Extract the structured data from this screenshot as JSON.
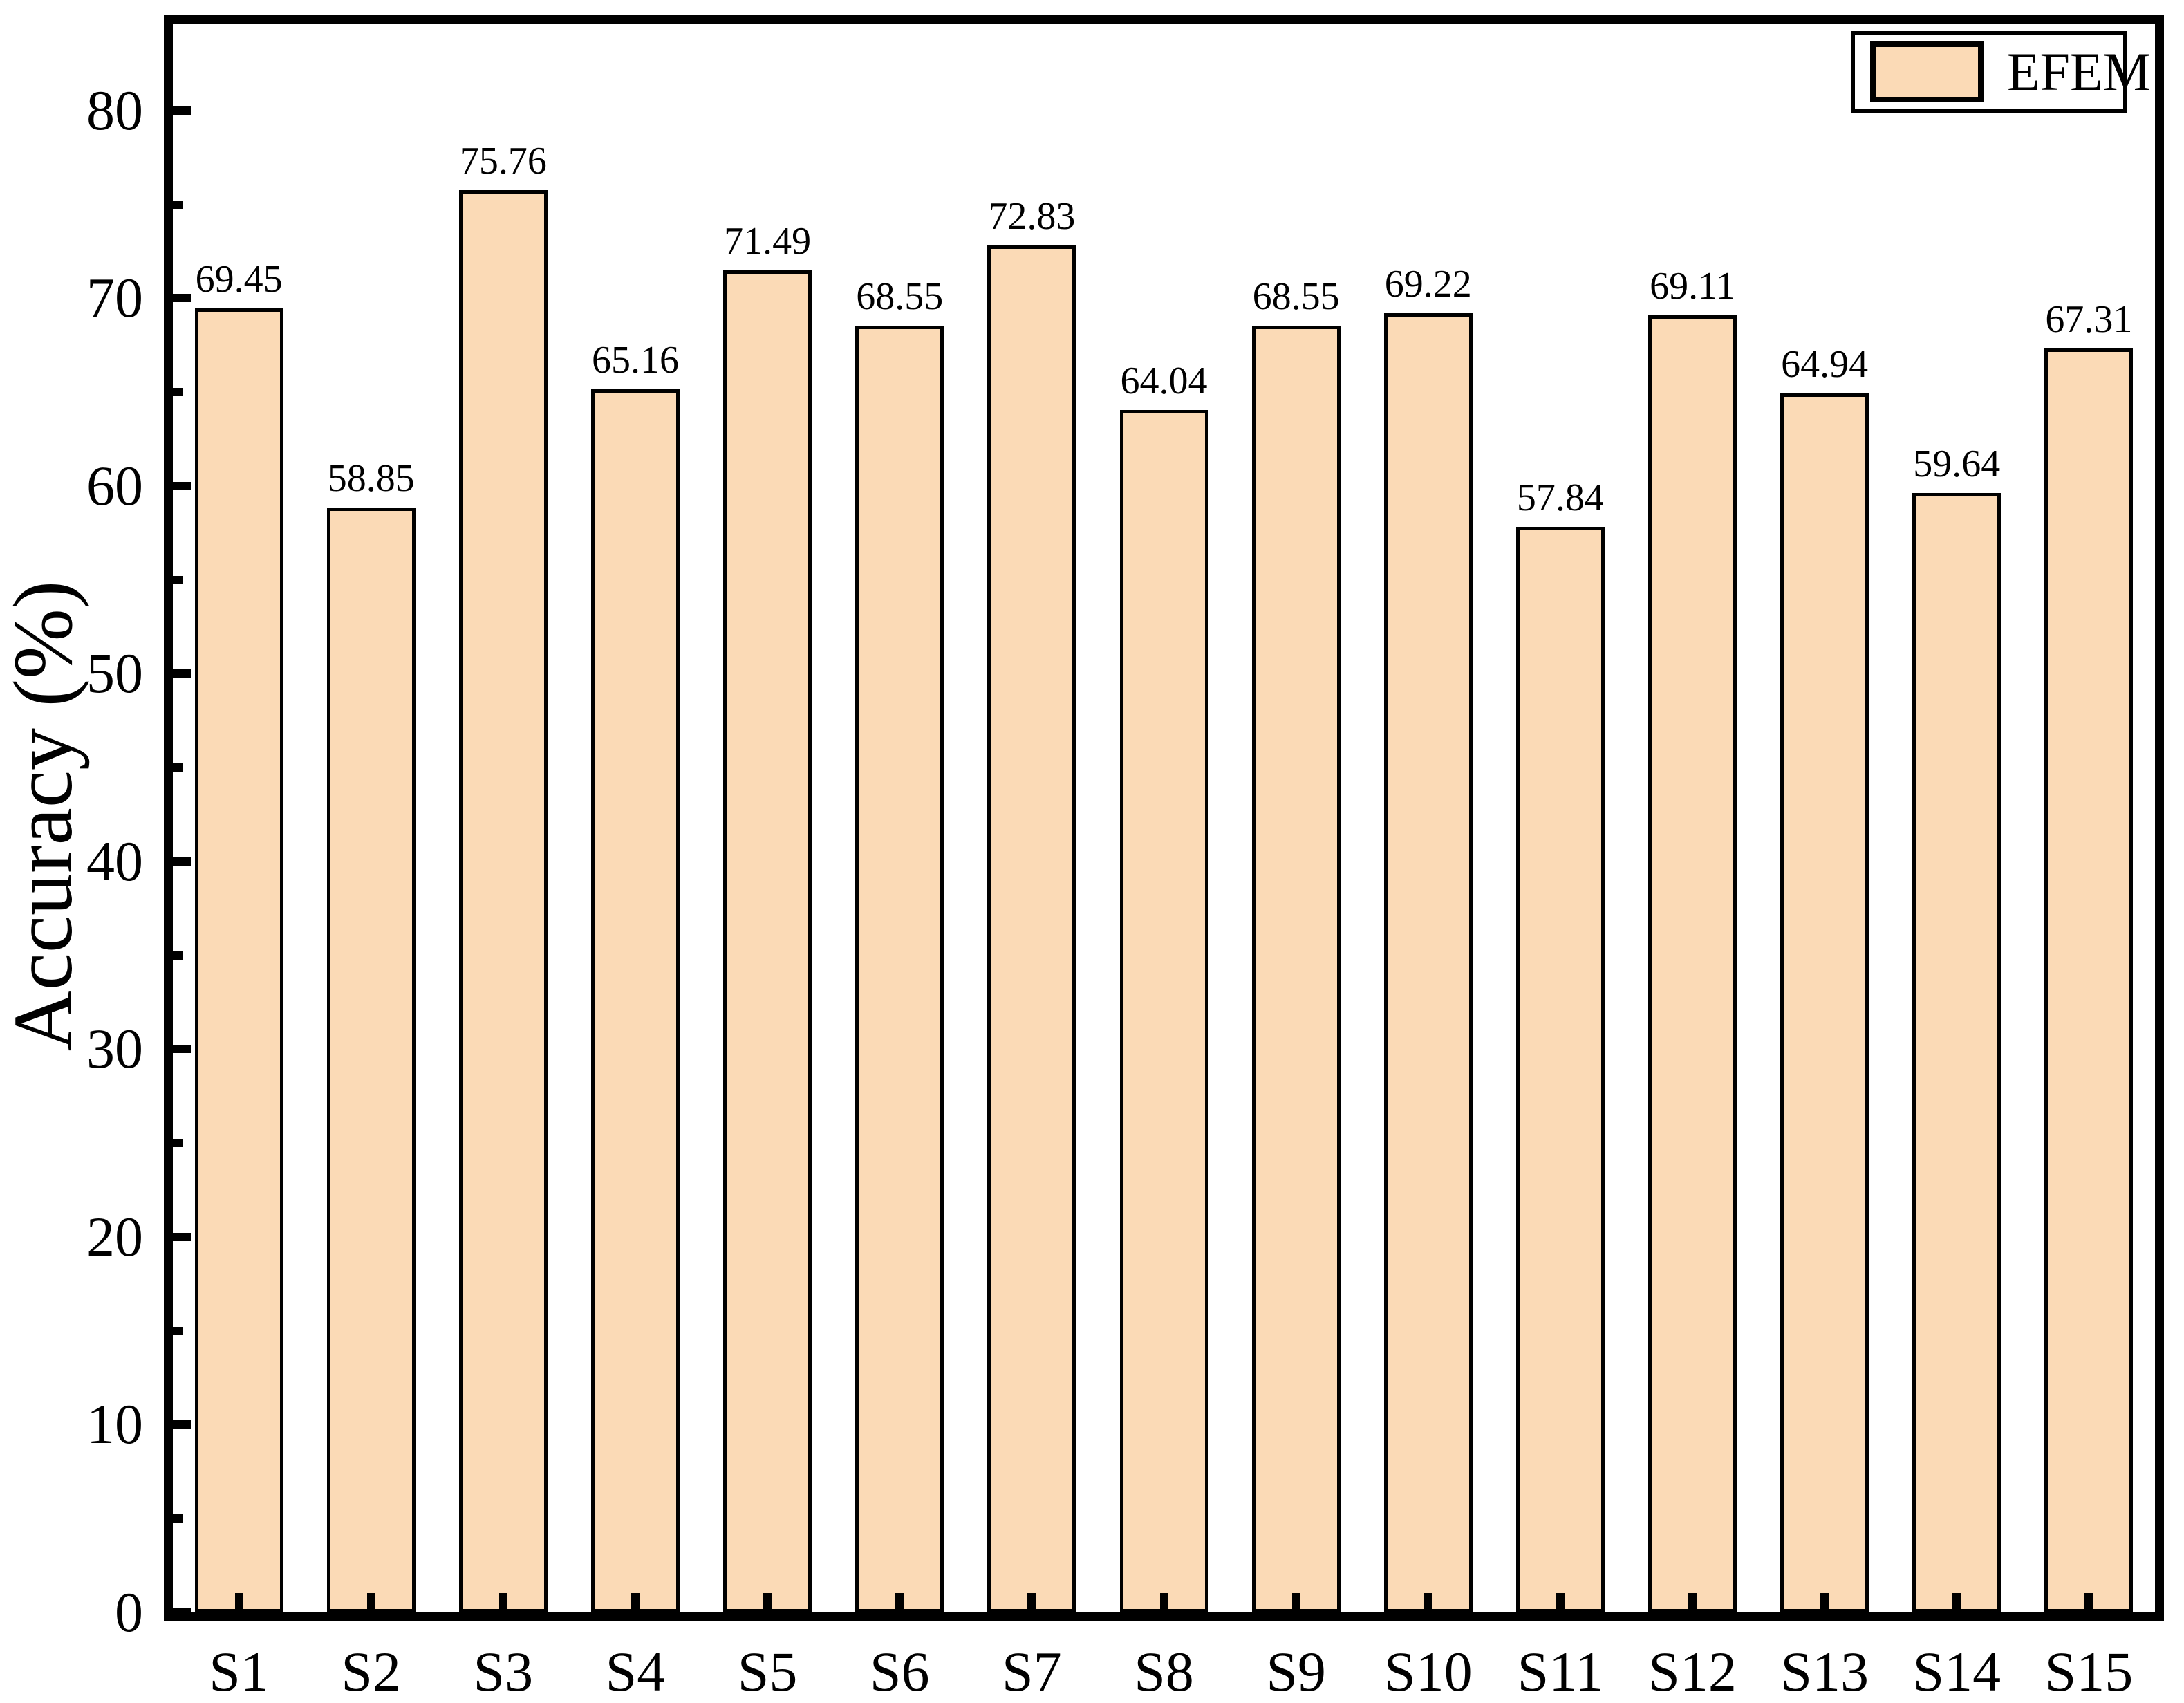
{
  "figure": {
    "background_color": "#ffffff",
    "axis_color": "#000000",
    "text_color": "#000000"
  },
  "chart_data": {
    "type": "bar",
    "title": "",
    "xlabel": "",
    "ylabel": "Accuracy (%)",
    "categories": [
      "S1",
      "S2",
      "S3",
      "S4",
      "S5",
      "S6",
      "S7",
      "S8",
      "S9",
      "S10",
      "S11",
      "S12",
      "S13",
      "S14",
      "S15"
    ],
    "values": [
      69.45,
      58.85,
      75.76,
      65.16,
      71.49,
      68.55,
      72.83,
      64.04,
      68.55,
      69.22,
      57.84,
      69.11,
      64.94,
      59.64,
      67.31
    ],
    "value_labels": [
      "69.45",
      "58.85",
      "75.76",
      "65.16",
      "71.49",
      "68.55",
      "72.83",
      "64.04",
      "68.55",
      "69.22",
      "57.84",
      "69.11",
      "64.94",
      "59.64",
      "67.31"
    ],
    "ylim": [
      0,
      84.6
    ],
    "yticks_major": [
      0,
      10,
      20,
      30,
      40,
      50,
      60,
      70,
      80
    ],
    "ytick_labels": [
      "0",
      "10",
      "20",
      "30",
      "40",
      "50",
      "60",
      "70",
      "80"
    ],
    "yticks_minor": [
      5,
      15,
      25,
      35,
      45,
      55,
      65,
      75
    ],
    "grid": false,
    "bar_color": "#fbdab6",
    "bar_edge_color": "#000000",
    "legend": {
      "position": "top-right",
      "entries": [
        {
          "label": "EFEM",
          "color": "#fbdab6"
        }
      ]
    }
  }
}
